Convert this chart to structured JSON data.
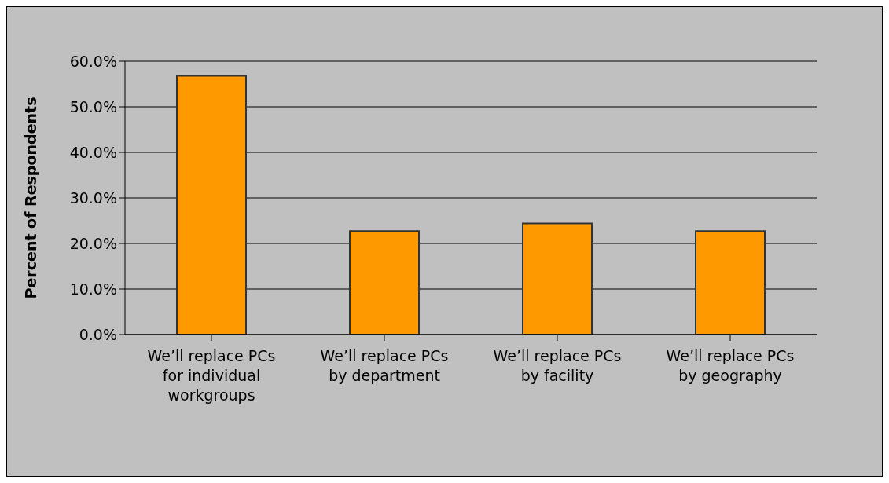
{
  "chart_data": {
    "type": "bar",
    "ylabel": "Percent of Respondents",
    "categories": [
      "We’ll replace PCs for individual workgroups",
      "We’ll replace PCs by department",
      "We’ll replace PCs by facility",
      "We’ll replace PCs by geography"
    ],
    "values": [
      56.8,
      22.7,
      24.4,
      22.7
    ],
    "color": "#ff9900",
    "ylim": [
      0,
      60
    ],
    "yticks": [
      {
        "value": 0,
        "label": "0.0%"
      },
      {
        "value": 10,
        "label": "10.0%"
      },
      {
        "value": 20,
        "label": "20.0%"
      },
      {
        "value": 30,
        "label": "30.0%"
      },
      {
        "value": 40,
        "label": "40.0%"
      },
      {
        "value": 50,
        "label": "50.0%"
      },
      {
        "value": 60,
        "label": "60.0%"
      }
    ],
    "grid": "y"
  }
}
